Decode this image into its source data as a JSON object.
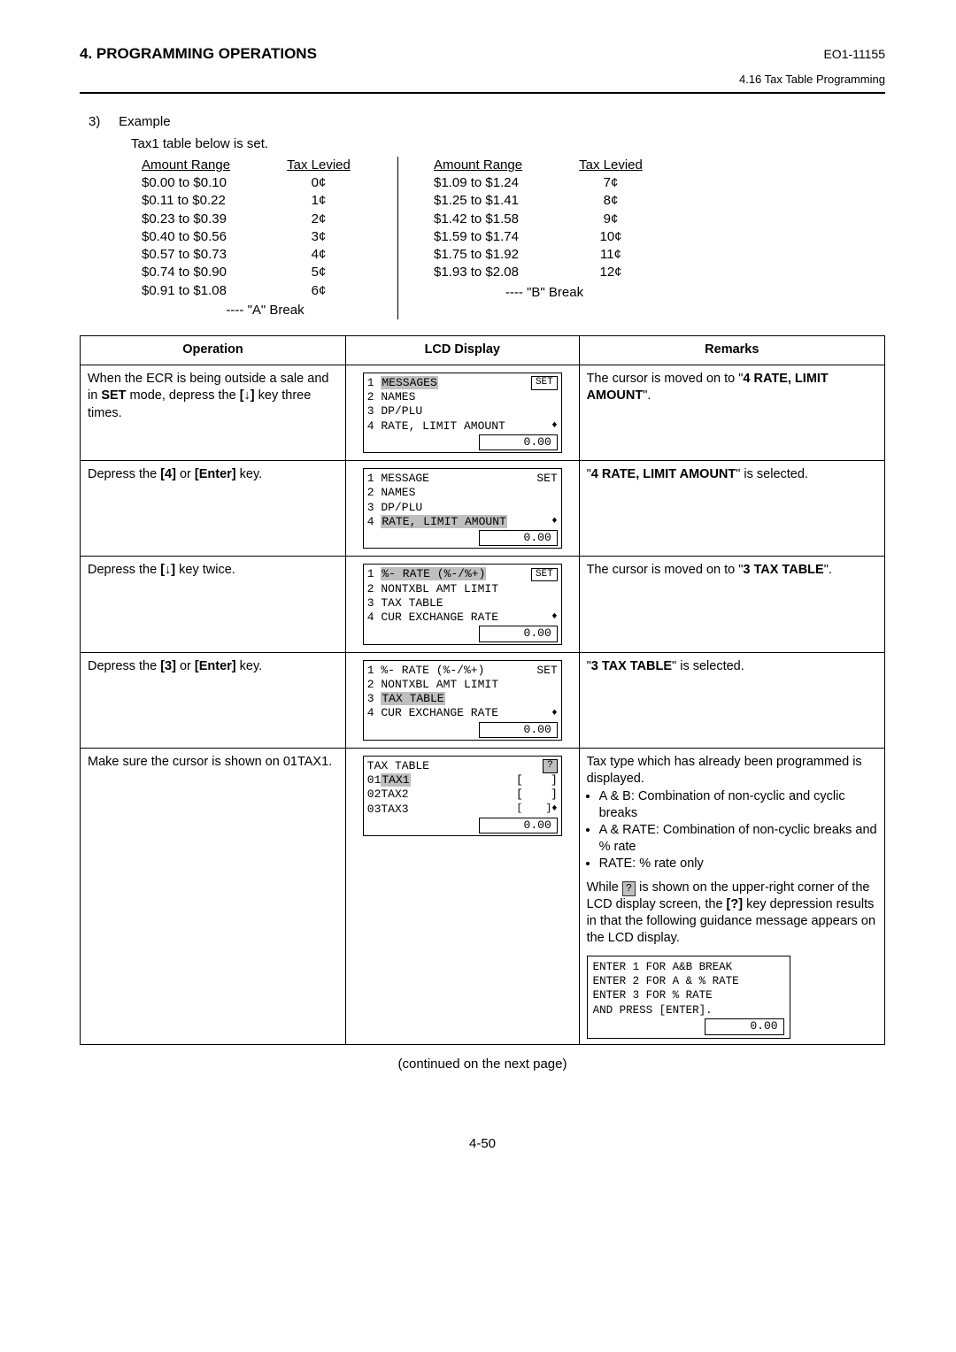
{
  "header": {
    "chapter": "4. PROGRAMMING OPERATIONS",
    "doc_id": "EO1-11155",
    "section": "4.16 Tax Table Programming"
  },
  "example": {
    "num": "3)",
    "label": "Example",
    "subtitle": "Tax1 table below is set.",
    "col_head_range": "Amount Range",
    "col_head_tax": "Tax Levied",
    "left_rows": [
      {
        "range": "$0.00 to $0.10",
        "tax": "0¢"
      },
      {
        "range": "$0.11 to $0.22",
        "tax": "1¢"
      },
      {
        "range": "$0.23 to $0.39",
        "tax": "2¢"
      },
      {
        "range": "$0.40 to $0.56",
        "tax": "3¢"
      },
      {
        "range": "$0.57 to $0.73",
        "tax": "4¢"
      },
      {
        "range": "$0.74 to $0.90",
        "tax": "5¢"
      },
      {
        "range": "$0.91 to $1.08",
        "tax": "6¢"
      }
    ],
    "left_break": "---- \"A\" Break",
    "right_rows": [
      {
        "range": "$1.09 to $1.24",
        "tax": "7¢"
      },
      {
        "range": "$1.25 to $1.41",
        "tax": "8¢"
      },
      {
        "range": "$1.42 to $1.58",
        "tax": "9¢"
      },
      {
        "range": "$1.59 to $1.74",
        "tax": "10¢"
      },
      {
        "range": "$1.75 to $1.92",
        "tax": "11¢"
      },
      {
        "range": "$1.93 to $2.08",
        "tax": "12¢"
      }
    ],
    "right_break": "---- \"B\" Break"
  },
  "table": {
    "head_op": "Operation",
    "head_lcd": "LCD Display",
    "head_rem": "Remarks",
    "rows": [
      {
        "op_pre": "When the ECR is being outside a sale and in ",
        "op_bold1": "SET",
        "op_mid": " mode, depress the ",
        "op_bold2": "[↓]",
        "op_post": " key three times.",
        "lcd": {
          "lines": [
            {
              "l": "1",
              "txt": "MESSAGES",
              "hl": true,
              "r": "SET",
              "rbox": true
            },
            {
              "l": "2",
              "txt": "NAMES"
            },
            {
              "l": "3",
              "txt": "DP/PLU"
            },
            {
              "l": "4",
              "txt": "RATE, LIMIT AMOUNT",
              "r": "♦",
              "updown": true
            }
          ],
          "val": "0.00"
        },
        "rem_pre": "The cursor is moved on to \"",
        "rem_bold": "4 RATE, LIMIT AMOUNT",
        "rem_post": "\"."
      },
      {
        "op_pre": "Depress the ",
        "op_bold1": "[4]",
        "op_mid": " or ",
        "op_bold2": "[Enter]",
        "op_post": " key.",
        "lcd": {
          "lines": [
            {
              "l": "1",
              "txt": "MESSAGE",
              "r": "SET"
            },
            {
              "l": "2",
              "txt": "NAMES"
            },
            {
              "l": "3",
              "txt": "DP/PLU"
            },
            {
              "l": "4",
              "txt": "RATE, LIMIT AMOUNT",
              "hl": true,
              "r": "♦",
              "updown": true
            }
          ],
          "val": "0.00"
        },
        "rem_pre": "\"",
        "rem_bold": "4 RATE, LIMIT AMOUNT",
        "rem_post": "\" is selected."
      },
      {
        "op_pre": "Depress the ",
        "op_bold1": "[↓]",
        "op_post": " key twice.",
        "lcd": {
          "lines": [
            {
              "l": "1",
              "txt": "%- RATE (%-/%+)",
              "hl": true,
              "r": "SET",
              "rbox": true
            },
            {
              "l": "2",
              "txt": "NONTXBL AMT LIMIT"
            },
            {
              "l": "3",
              "txt": "TAX TABLE"
            },
            {
              "l": "4",
              "txt": "CUR EXCHANGE RATE",
              "r": "♦",
              "updown": true
            }
          ],
          "val": "0.00"
        },
        "rem_pre": "The cursor is moved on to \"",
        "rem_bold": "3 TAX TABLE",
        "rem_post": "\"."
      },
      {
        "op_pre": "Depress the ",
        "op_bold1": "[3]",
        "op_mid": " or ",
        "op_bold2": "[Enter]",
        "op_post": " key.",
        "lcd": {
          "lines": [
            {
              "l": "1",
              "txt": "%- RATE (%-/%+)",
              "r": "SET"
            },
            {
              "l": "2",
              "txt": "NONTXBL AMT LIMIT"
            },
            {
              "l": "3",
              "txt": "TAX TABLE",
              "hl": true
            },
            {
              "l": "4",
              "txt": "CUR EXCHANGE RATE",
              "r": "♦",
              "updown": true
            }
          ],
          "val": "0.00"
        },
        "rem_pre": "\"",
        "rem_bold": "3 TAX TABLE",
        "rem_post": "\" is selected."
      },
      {
        "op_plain": "Make sure the cursor is shown on 01TAX1.",
        "lcd": {
          "title": "TAX TABLE",
          "title_r": "?",
          "title_rbox": true,
          "lines": [
            {
              "l": "01",
              "txt": "TAX1",
              "hl": true,
              "br_l": "[",
              "br_r": "]"
            },
            {
              "l": "02",
              "txt": "TAX2",
              "br_l": "[",
              "br_r": "]"
            },
            {
              "l": "03",
              "txt": "TAX3",
              "br_l": "[",
              "br_r": "]♦",
              "updown": true
            }
          ],
          "val": "0.00"
        },
        "rem_lines": [
          "Tax type which has already been programmed is displayed."
        ],
        "rem_bullets": [
          "A & B: Combination of non-cyclic and cyclic breaks",
          "A & RATE: Combination of non-cyclic breaks and % rate",
          "RATE: % rate only"
        ],
        "rem_after_pre": "While ",
        "rem_after_q": "?",
        "rem_after_mid": " is shown on the upper-right corner of the LCD display screen, the ",
        "rem_after_bold": "[?]",
        "rem_after_post": " key depression results in that the following guidance message appears on the LCD display.",
        "guidance": [
          "ENTER 1 FOR A&B BREAK",
          "ENTER 2 FOR A & % RATE",
          "ENTER 3 FOR % RATE",
          "AND PRESS [ENTER]."
        ],
        "guidance_val": "0.00"
      }
    ]
  },
  "continued": "(continued on the next page)",
  "page_num": "4-50"
}
